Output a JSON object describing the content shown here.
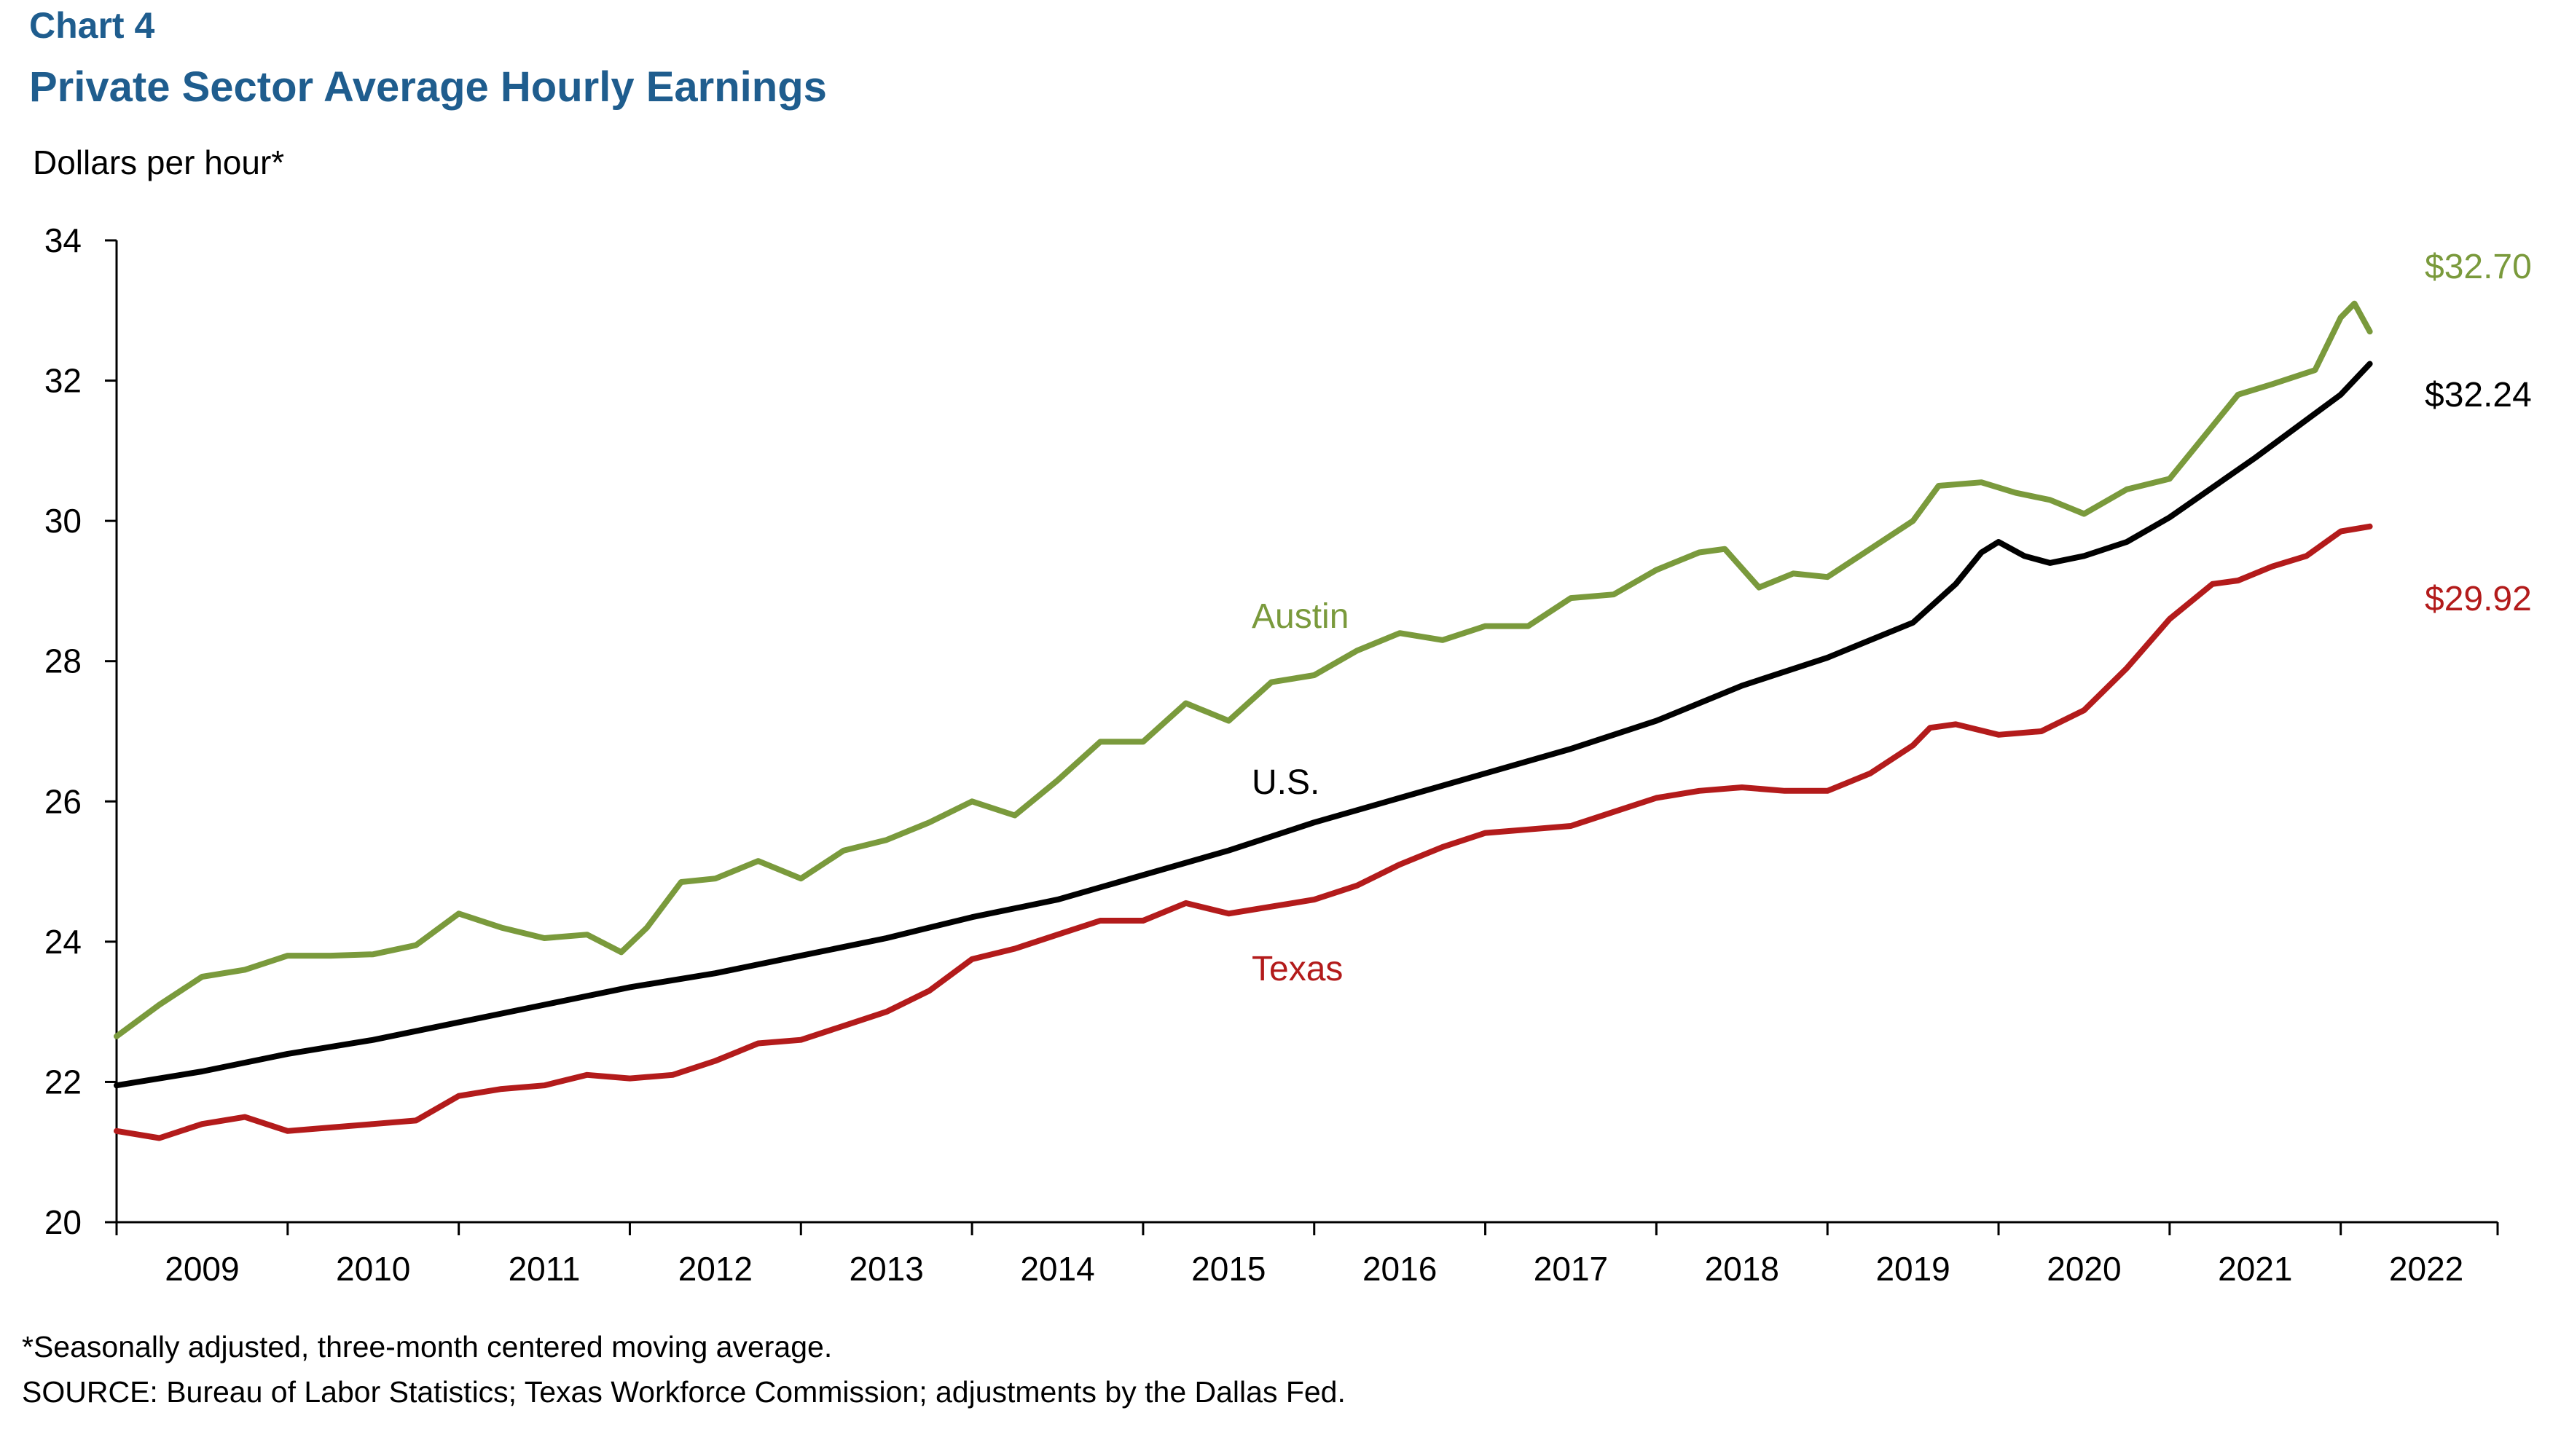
{
  "chart_data": {
    "type": "line",
    "title": "Chart 4",
    "subtitle": "Private Sector Average Hourly Earnings",
    "ylabel": "Dollars per hour*",
    "ylim": [
      20,
      34
    ],
    "yticks": [
      20,
      22,
      24,
      26,
      28,
      30,
      32,
      34
    ],
    "xlim": [
      2009.0,
      2022.917
    ],
    "xtick_labels": [
      "2009",
      "2010",
      "2011",
      "2012",
      "2013",
      "2014",
      "2015",
      "2016",
      "2017",
      "2018",
      "2019",
      "2020",
      "2021",
      "2022"
    ],
    "grid": false,
    "legend": "none",
    "series": [
      {
        "name": "Austin",
        "color": "#7a9a3c",
        "end_label": "$32.70",
        "points": [
          [
            2009.0,
            22.65
          ],
          [
            2009.25,
            23.1
          ],
          [
            2009.5,
            23.5
          ],
          [
            2009.75,
            23.6
          ],
          [
            2010.0,
            23.8
          ],
          [
            2010.25,
            23.8
          ],
          [
            2010.5,
            23.82
          ],
          [
            2010.75,
            23.95
          ],
          [
            2011.0,
            24.4
          ],
          [
            2011.25,
            24.2
          ],
          [
            2011.5,
            24.05
          ],
          [
            2011.75,
            24.1
          ],
          [
            2011.95,
            23.85
          ],
          [
            2012.1,
            24.2
          ],
          [
            2012.3,
            24.85
          ],
          [
            2012.5,
            24.9
          ],
          [
            2012.75,
            25.15
          ],
          [
            2013.0,
            24.9
          ],
          [
            2013.25,
            25.3
          ],
          [
            2013.5,
            25.45
          ],
          [
            2013.75,
            25.7
          ],
          [
            2014.0,
            26.0
          ],
          [
            2014.25,
            25.8
          ],
          [
            2014.5,
            26.3
          ],
          [
            2014.75,
            26.85
          ],
          [
            2015.0,
            26.85
          ],
          [
            2015.25,
            27.4
          ],
          [
            2015.5,
            27.15
          ],
          [
            2015.75,
            27.7
          ],
          [
            2016.0,
            27.8
          ],
          [
            2016.25,
            28.15
          ],
          [
            2016.5,
            28.4
          ],
          [
            2016.75,
            28.3
          ],
          [
            2017.0,
            28.5
          ],
          [
            2017.25,
            28.5
          ],
          [
            2017.5,
            28.9
          ],
          [
            2017.75,
            28.95
          ],
          [
            2018.0,
            29.3
          ],
          [
            2018.25,
            29.55
          ],
          [
            2018.4,
            29.6
          ],
          [
            2018.6,
            29.05
          ],
          [
            2018.8,
            29.25
          ],
          [
            2019.0,
            29.2
          ],
          [
            2019.25,
            29.6
          ],
          [
            2019.5,
            30.0
          ],
          [
            2019.65,
            30.5
          ],
          [
            2019.9,
            30.55
          ],
          [
            2020.1,
            30.4
          ],
          [
            2020.3,
            30.3
          ],
          [
            2020.5,
            30.1
          ],
          [
            2020.75,
            30.45
          ],
          [
            2021.0,
            30.6
          ],
          [
            2021.2,
            31.2
          ],
          [
            2021.4,
            31.8
          ],
          [
            2021.6,
            31.95
          ],
          [
            2021.85,
            32.15
          ],
          [
            2022.0,
            32.9
          ],
          [
            2022.08,
            33.1
          ],
          [
            2022.17,
            32.7
          ]
        ]
      },
      {
        "name": "U.S.",
        "color": "#000000",
        "end_label": "$32.24",
        "points": [
          [
            2009.0,
            21.95
          ],
          [
            2009.5,
            22.15
          ],
          [
            2010.0,
            22.4
          ],
          [
            2010.5,
            22.6
          ],
          [
            2011.0,
            22.85
          ],
          [
            2011.5,
            23.1
          ],
          [
            2012.0,
            23.35
          ],
          [
            2012.5,
            23.55
          ],
          [
            2013.0,
            23.8
          ],
          [
            2013.5,
            24.05
          ],
          [
            2014.0,
            24.35
          ],
          [
            2014.5,
            24.6
          ],
          [
            2015.0,
            24.95
          ],
          [
            2015.5,
            25.3
          ],
          [
            2016.0,
            25.7
          ],
          [
            2016.5,
            26.05
          ],
          [
            2017.0,
            26.4
          ],
          [
            2017.5,
            26.75
          ],
          [
            2018.0,
            27.15
          ],
          [
            2018.5,
            27.65
          ],
          [
            2019.0,
            28.05
          ],
          [
            2019.5,
            28.55
          ],
          [
            2019.75,
            29.1
          ],
          [
            2019.9,
            29.55
          ],
          [
            2020.0,
            29.7
          ],
          [
            2020.15,
            29.5
          ],
          [
            2020.3,
            29.4
          ],
          [
            2020.5,
            29.5
          ],
          [
            2020.75,
            29.7
          ],
          [
            2021.0,
            30.05
          ],
          [
            2021.5,
            30.9
          ],
          [
            2022.0,
            31.8
          ],
          [
            2022.17,
            32.24
          ]
        ]
      },
      {
        "name": "Texas",
        "color": "#b31b1b",
        "end_label": "$29.92",
        "points": [
          [
            2009.0,
            21.3
          ],
          [
            2009.25,
            21.2
          ],
          [
            2009.5,
            21.4
          ],
          [
            2009.75,
            21.5
          ],
          [
            2010.0,
            21.3
          ],
          [
            2010.25,
            21.35
          ],
          [
            2010.5,
            21.4
          ],
          [
            2010.75,
            21.45
          ],
          [
            2011.0,
            21.8
          ],
          [
            2011.25,
            21.9
          ],
          [
            2011.5,
            21.95
          ],
          [
            2011.75,
            22.1
          ],
          [
            2012.0,
            22.05
          ],
          [
            2012.25,
            22.1
          ],
          [
            2012.5,
            22.3
          ],
          [
            2012.75,
            22.55
          ],
          [
            2013.0,
            22.6
          ],
          [
            2013.25,
            22.8
          ],
          [
            2013.5,
            23.0
          ],
          [
            2013.75,
            23.3
          ],
          [
            2014.0,
            23.75
          ],
          [
            2014.25,
            23.9
          ],
          [
            2014.5,
            24.1
          ],
          [
            2014.75,
            24.3
          ],
          [
            2015.0,
            24.3
          ],
          [
            2015.25,
            24.55
          ],
          [
            2015.5,
            24.4
          ],
          [
            2015.75,
            24.5
          ],
          [
            2016.0,
            24.6
          ],
          [
            2016.25,
            24.8
          ],
          [
            2016.5,
            25.1
          ],
          [
            2016.75,
            25.35
          ],
          [
            2017.0,
            25.55
          ],
          [
            2017.25,
            25.6
          ],
          [
            2017.5,
            25.65
          ],
          [
            2017.75,
            25.85
          ],
          [
            2018.0,
            26.05
          ],
          [
            2018.25,
            26.15
          ],
          [
            2018.5,
            26.2
          ],
          [
            2018.75,
            26.15
          ],
          [
            2019.0,
            26.15
          ],
          [
            2019.25,
            26.4
          ],
          [
            2019.5,
            26.8
          ],
          [
            2019.6,
            27.05
          ],
          [
            2019.75,
            27.1
          ],
          [
            2020.0,
            26.95
          ],
          [
            2020.25,
            27.0
          ],
          [
            2020.5,
            27.3
          ],
          [
            2020.75,
            27.9
          ],
          [
            2021.0,
            28.6
          ],
          [
            2021.25,
            29.1
          ],
          [
            2021.4,
            29.15
          ],
          [
            2021.6,
            29.35
          ],
          [
            2021.8,
            29.5
          ],
          [
            2022.0,
            29.85
          ],
          [
            2022.17,
            29.92
          ]
        ]
      }
    ],
    "annotations": [
      {
        "text": "Austin",
        "series": "Austin"
      },
      {
        "text": "U.S.",
        "series": "U.S."
      },
      {
        "text": "Texas",
        "series": "Texas"
      }
    ],
    "footnote": "*Seasonally adjusted, three-month centered moving average.",
    "source": "SOURCE: Bureau of Labor Statistics; Texas Workforce Commission; adjustments by the Dallas Fed."
  }
}
